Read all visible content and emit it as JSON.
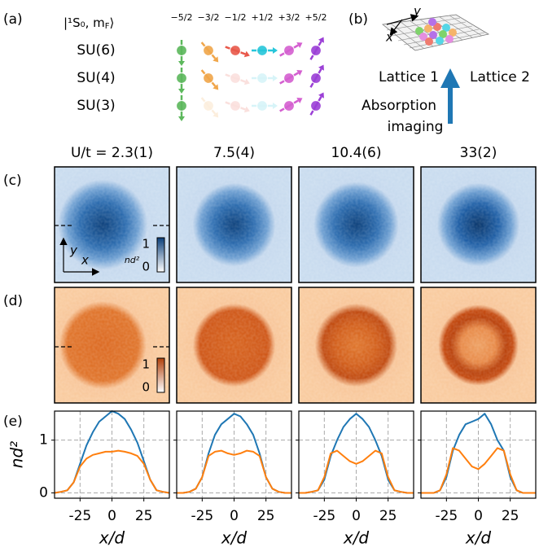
{
  "panel_labels": [
    "(a)",
    "(b)",
    "(c)",
    "(d)",
    "(e)"
  ],
  "panel_a": {
    "state_label": {
      "prefix": "|¹S₀, m",
      "sub": "F",
      "suffix": "⟩"
    },
    "spin_labels": [
      "−5/2",
      "−3/2",
      "−1/2",
      "+1/2",
      "+3/2",
      "+5/2"
    ],
    "rows": [
      "SU(6)",
      "SU(4)",
      "SU(3)"
    ]
  },
  "panel_b": {
    "axis_labels": [
      "y",
      "x"
    ],
    "lattice_labels": [
      "Lattice 1",
      "Lattice 2"
    ],
    "imaging_label": [
      "Absorption",
      "imaging"
    ]
  },
  "column_labels": [
    "U/t = 2.3(1)",
    "7.5(4)",
    "10.4(6)",
    "33(2)"
  ],
  "image_axes": [
    "y",
    "x"
  ],
  "colorbar": {
    "label": "nd²",
    "ticks": [
      1,
      0
    ]
  },
  "chart_data": [
    {
      "type": "line",
      "x_label": "x/d",
      "y_label": "nd²",
      "show_ytick_labels": true,
      "x": [
        -45,
        -40,
        -35,
        -30,
        -25,
        -20,
        -15,
        -10,
        -5,
        0,
        5,
        10,
        15,
        20,
        25,
        30,
        35,
        40,
        45
      ],
      "series": [
        {
          "color": "#1f77b4",
          "values": [
            0,
            0.02,
            0.05,
            0.2,
            0.55,
            0.9,
            1.15,
            1.35,
            1.45,
            1.55,
            1.5,
            1.4,
            1.2,
            0.95,
            0.6,
            0.25,
            0.05,
            0.02,
            0
          ]
        },
        {
          "color": "#ff7f0e",
          "values": [
            0,
            0.02,
            0.05,
            0.2,
            0.5,
            0.65,
            0.72,
            0.75,
            0.78,
            0.78,
            0.8,
            0.78,
            0.75,
            0.7,
            0.55,
            0.25,
            0.05,
            0.02,
            0
          ]
        }
      ],
      "xlim": [
        -45,
        45
      ],
      "ylim": [
        -0.1,
        1.55
      ],
      "xticks": [
        -25,
        0,
        25
      ],
      "yticks": [
        0,
        1
      ],
      "grid": true
    },
    {
      "type": "line",
      "x_label": "x/d",
      "show_ytick_labels": false,
      "x": [
        -45,
        -40,
        -35,
        -30,
        -25,
        -20,
        -15,
        -10,
        -5,
        0,
        5,
        10,
        15,
        20,
        25,
        30,
        35,
        40,
        45
      ],
      "series": [
        {
          "color": "#1f77b4",
          "values": [
            0,
            0,
            0.02,
            0.08,
            0.3,
            0.75,
            1.1,
            1.3,
            1.4,
            1.5,
            1.45,
            1.3,
            1.1,
            0.75,
            0.3,
            0.08,
            0.02,
            0,
            0
          ]
        },
        {
          "color": "#ff7f0e",
          "values": [
            0,
            0,
            0.02,
            0.08,
            0.3,
            0.7,
            0.78,
            0.8,
            0.75,
            0.72,
            0.75,
            0.8,
            0.78,
            0.7,
            0.3,
            0.08,
            0.02,
            0,
            0
          ]
        }
      ],
      "xlim": [
        -45,
        45
      ],
      "ylim": [
        -0.1,
        1.55
      ],
      "xticks": [
        -25,
        0,
        25
      ],
      "yticks": [
        0,
        1
      ],
      "grid": true
    },
    {
      "type": "line",
      "x_label": "x/d",
      "show_ytick_labels": false,
      "x": [
        -45,
        -40,
        -35,
        -30,
        -25,
        -20,
        -15,
        -10,
        -5,
        0,
        5,
        10,
        15,
        20,
        25,
        30,
        35,
        40,
        45
      ],
      "series": [
        {
          "color": "#1f77b4",
          "values": [
            0,
            0,
            0.02,
            0.05,
            0.25,
            0.7,
            1.0,
            1.25,
            1.4,
            1.5,
            1.4,
            1.25,
            1.0,
            0.7,
            0.25,
            0.05,
            0.02,
            0,
            0
          ]
        },
        {
          "color": "#ff7f0e",
          "values": [
            0,
            0,
            0.02,
            0.05,
            0.3,
            0.75,
            0.8,
            0.7,
            0.6,
            0.55,
            0.6,
            0.7,
            0.8,
            0.75,
            0.3,
            0.05,
            0.02,
            0,
            0
          ]
        }
      ],
      "xlim": [
        -45,
        45
      ],
      "ylim": [
        -0.1,
        1.55
      ],
      "xticks": [
        -25,
        0,
        25
      ],
      "yticks": [
        0,
        1
      ],
      "grid": true
    },
    {
      "type": "line",
      "x_label": "x/d",
      "show_ytick_labels": false,
      "x": [
        -45,
        -40,
        -35,
        -30,
        -25,
        -20,
        -15,
        -10,
        -5,
        0,
        5,
        10,
        15,
        20,
        25,
        30,
        35,
        40,
        45
      ],
      "series": [
        {
          "color": "#1f77b4",
          "values": [
            0,
            0,
            0,
            0.05,
            0.3,
            0.8,
            1.1,
            1.3,
            1.35,
            1.4,
            1.5,
            1.3,
            1.0,
            0.8,
            0.3,
            0.05,
            0,
            0,
            0
          ]
        },
        {
          "color": "#ff7f0e",
          "values": [
            0,
            0,
            0,
            0.05,
            0.35,
            0.85,
            0.8,
            0.65,
            0.5,
            0.45,
            0.55,
            0.7,
            0.85,
            0.8,
            0.35,
            0.05,
            0,
            0,
            0
          ]
        }
      ],
      "xlim": [
        -45,
        45
      ],
      "ylim": [
        -0.1,
        1.55
      ],
      "xticks": [
        -25,
        0,
        25
      ],
      "yticks": [
        0,
        1
      ],
      "grid": true
    }
  ]
}
